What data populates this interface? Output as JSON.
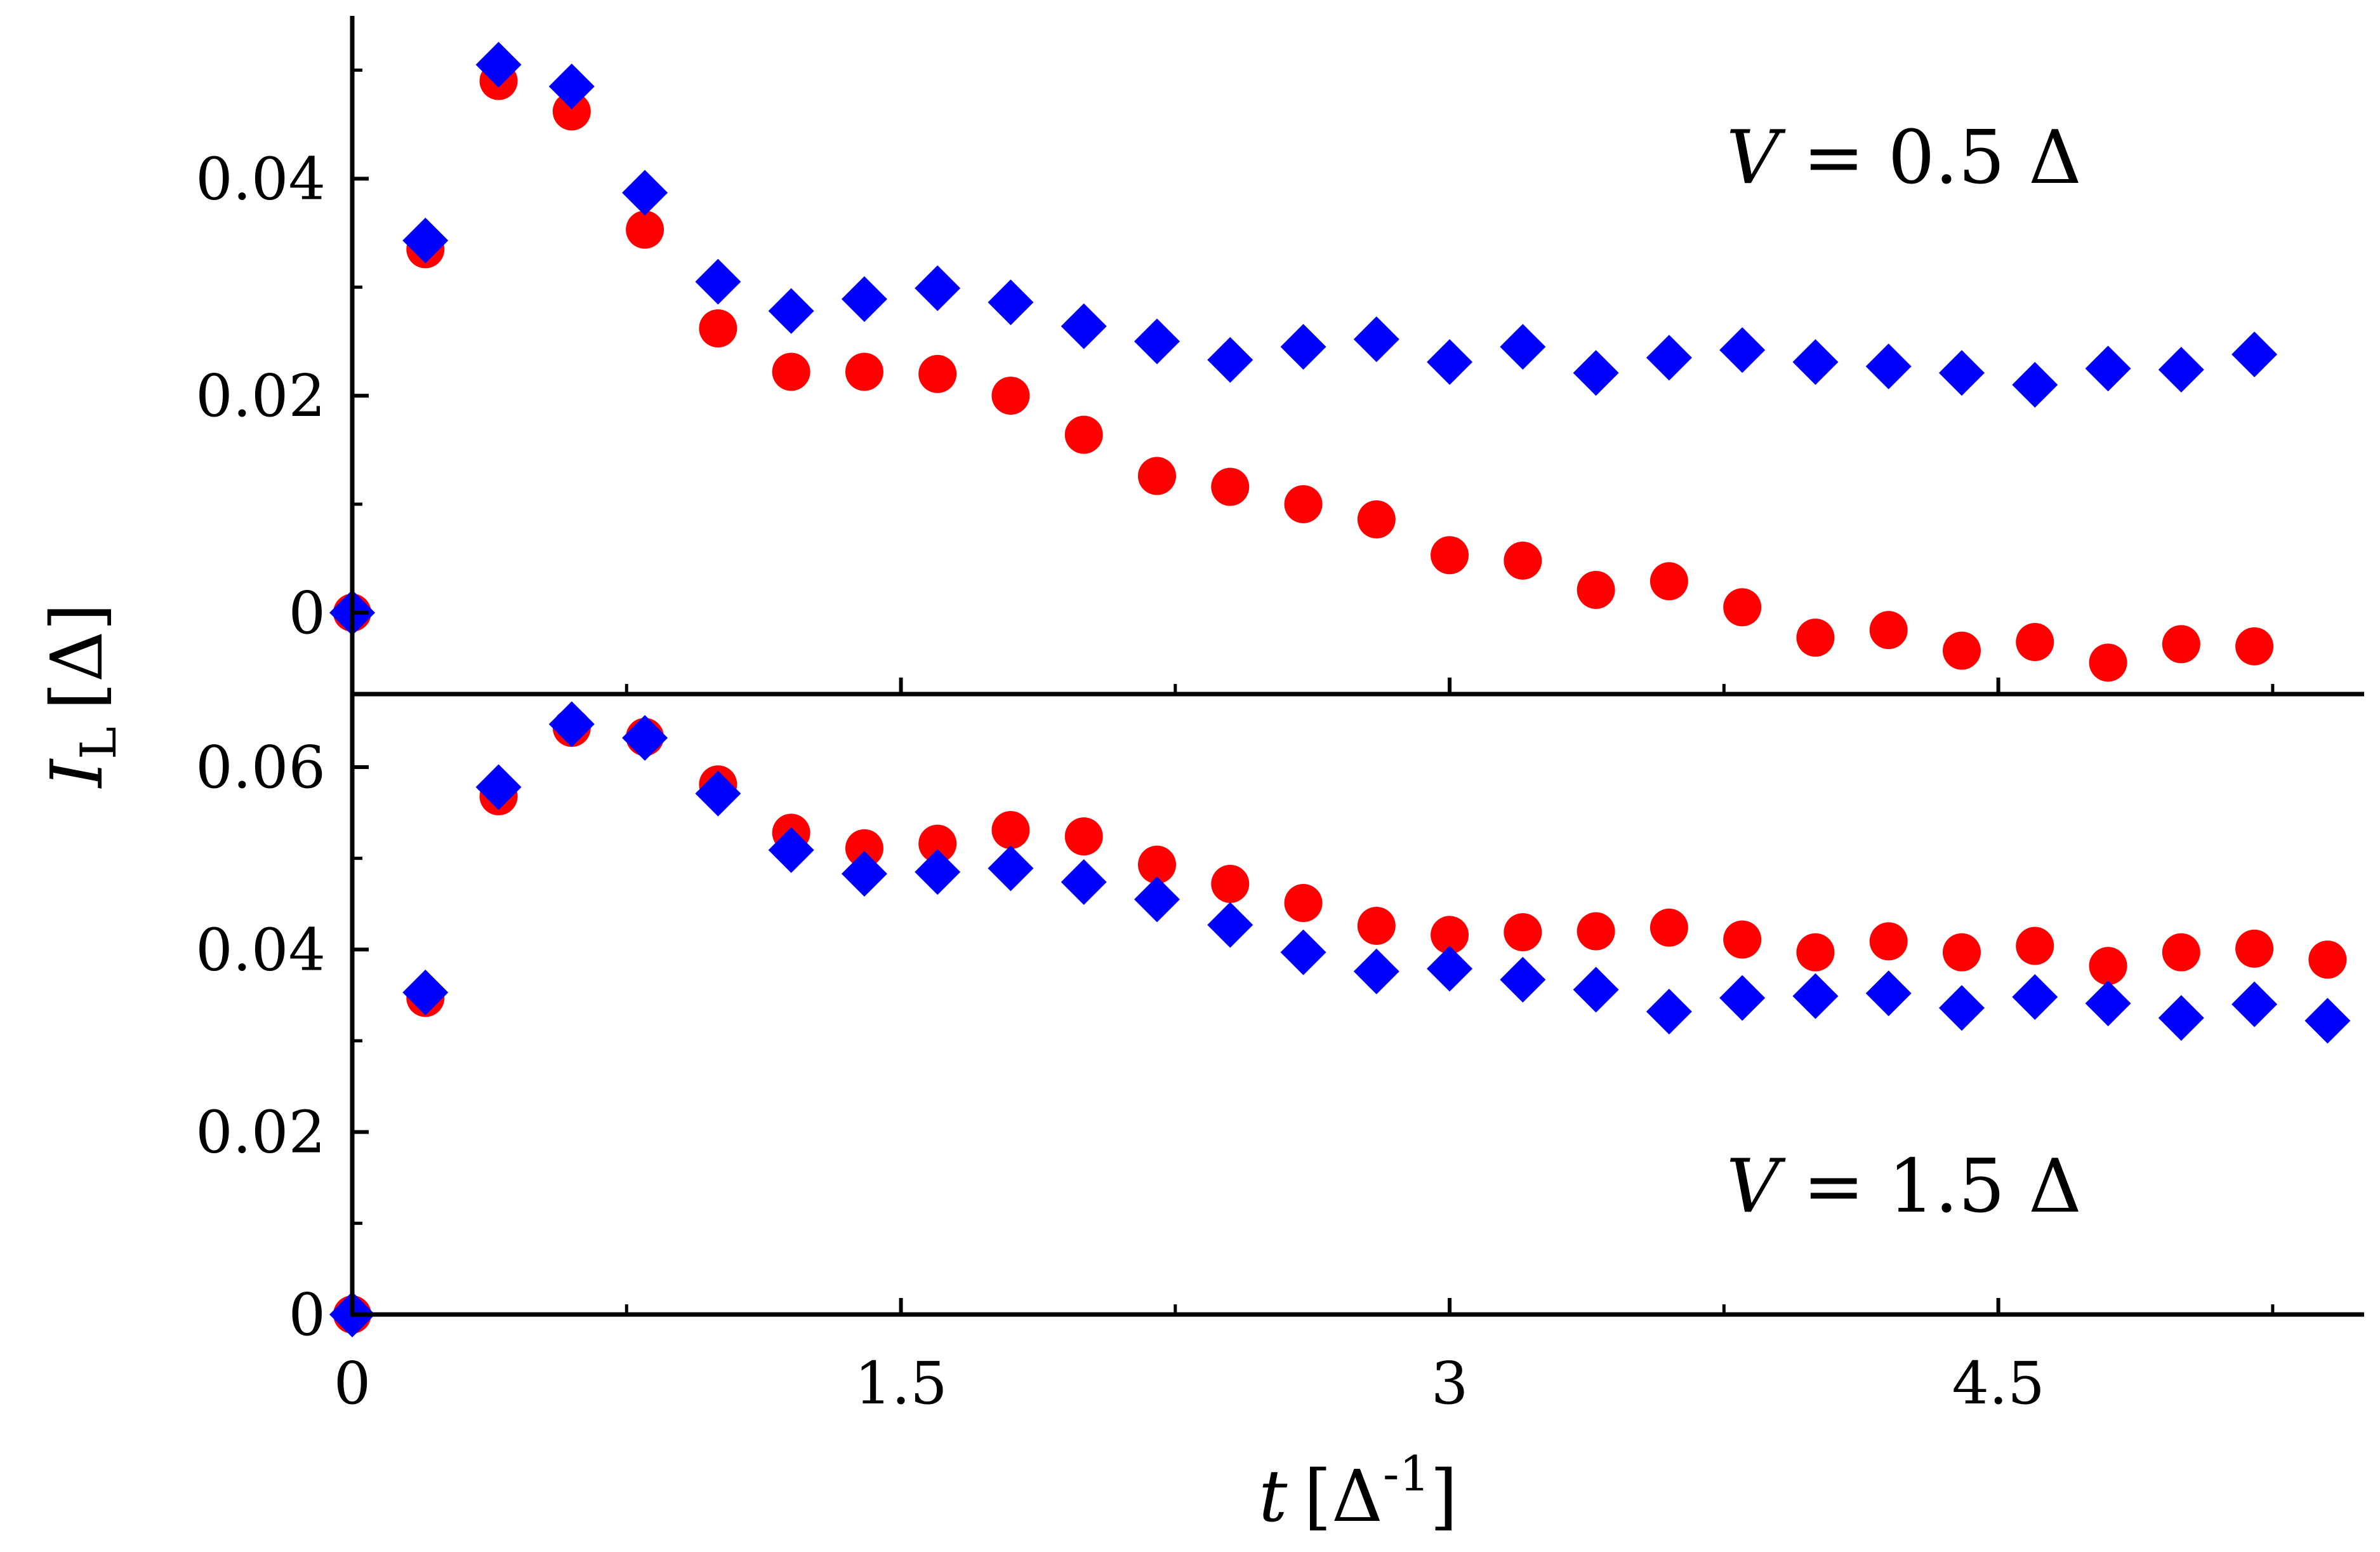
{
  "chart_data": [
    {
      "type": "scatter",
      "panel": "top",
      "annotation": {
        "var": "V",
        "eq": " = 0.5 Δ"
      },
      "xlim": [
        0,
        5.5
      ],
      "ylim": [
        -0.0075,
        0.055
      ],
      "x_ticks": [
        0,
        1.5,
        3,
        4.5
      ],
      "x_tick_labels": [
        "0",
        "1.5",
        "3",
        "4.5"
      ],
      "y_ticks": [
        0,
        0.02,
        0.04
      ],
      "y_tick_labels": [
        "0",
        "0.02",
        "0.04"
      ],
      "grid": false,
      "series": [
        {
          "marker": "circle",
          "color": "#ff0000",
          "x": [
            0,
            0.2,
            0.4,
            0.6,
            0.8,
            1.0,
            1.2,
            1.4,
            1.6,
            1.8,
            2.0,
            2.2,
            2.4,
            2.6,
            2.8,
            3.0,
            3.2,
            3.4,
            3.6,
            3.8,
            4.0,
            4.2,
            4.4,
            4.6,
            4.8,
            5.0,
            5.2
          ],
          "y": [
            0,
            0.0335,
            0.049,
            0.0462,
            0.0353,
            0.0262,
            0.0222,
            0.0222,
            0.022,
            0.02,
            0.0164,
            0.0126,
            0.0116,
            0.01,
            0.0086,
            0.0053,
            0.0048,
            0.0021,
            0.0029,
            0.0005,
            -0.0023,
            -0.0016,
            -0.0035,
            -0.0027,
            -0.0046,
            -0.0029,
            -0.0031
          ]
        },
        {
          "marker": "diamond",
          "color": "#0000ff",
          "x": [
            0,
            0.2,
            0.4,
            0.6,
            0.8,
            1.0,
            1.2,
            1.4,
            1.6,
            1.8,
            2.0,
            2.2,
            2.4,
            2.6,
            2.8,
            3.0,
            3.2,
            3.4,
            3.6,
            3.8,
            4.0,
            4.2,
            4.4,
            4.6,
            4.8,
            5.0,
            5.2
          ],
          "y": [
            0,
            0.0343,
            0.0505,
            0.0485,
            0.0387,
            0.0305,
            0.0278,
            0.0289,
            0.0299,
            0.0286,
            0.0264,
            0.025,
            0.0233,
            0.0245,
            0.0252,
            0.0231,
            0.0245,
            0.0221,
            0.0235,
            0.0242,
            0.0231,
            0.0227,
            0.0221,
            0.021,
            0.0225,
            0.0224,
            0.0238
          ]
        }
      ]
    },
    {
      "type": "scatter",
      "panel": "bottom",
      "annotation": {
        "var": "V",
        "eq": " = 1.5 Δ"
      },
      "xlim": [
        0,
        5.5
      ],
      "ylim": [
        0,
        0.068
      ],
      "x_ticks": [
        0,
        1.5,
        3,
        4.5
      ],
      "x_tick_labels": [
        "0",
        "1.5",
        "3",
        "4.5"
      ],
      "y_ticks": [
        0,
        0.02,
        0.04,
        0.06
      ],
      "y_tick_labels": [
        "0",
        "0.02",
        "0.04",
        "0.06"
      ],
      "grid": false,
      "series": [
        {
          "marker": "circle",
          "color": "#ff0000",
          "x": [
            0,
            0.2,
            0.4,
            0.6,
            0.8,
            1.0,
            1.2,
            1.4,
            1.6,
            1.8,
            2.0,
            2.2,
            2.4,
            2.6,
            2.8,
            3.0,
            3.2,
            3.4,
            3.6,
            3.8,
            4.0,
            4.2,
            4.4,
            4.6,
            4.8,
            5.0,
            5.2,
            5.4
          ],
          "y": [
            0,
            0.0347,
            0.0568,
            0.0643,
            0.0633,
            0.0581,
            0.0528,
            0.0511,
            0.0516,
            0.0531,
            0.0524,
            0.0493,
            0.0472,
            0.0451,
            0.0426,
            0.0416,
            0.0419,
            0.042,
            0.0424,
            0.0411,
            0.0397,
            0.0409,
            0.0397,
            0.0404,
            0.0382,
            0.0397,
            0.0401,
            0.0389
          ]
        },
        {
          "marker": "diamond",
          "color": "#0000ff",
          "x": [
            0,
            0.2,
            0.4,
            0.6,
            0.8,
            1.0,
            1.2,
            1.4,
            1.6,
            1.8,
            2.0,
            2.2,
            2.4,
            2.6,
            2.8,
            3.0,
            3.2,
            3.4,
            3.6,
            3.8,
            4.0,
            4.2,
            4.4,
            4.6,
            4.8,
            5.0,
            5.2,
            5.4
          ],
          "y": [
            0,
            0.0353,
            0.0578,
            0.0647,
            0.0632,
            0.0571,
            0.0509,
            0.0483,
            0.0485,
            0.0489,
            0.0474,
            0.0455,
            0.0427,
            0.0397,
            0.0376,
            0.0379,
            0.0367,
            0.0356,
            0.0332,
            0.0347,
            0.0349,
            0.0352,
            0.0336,
            0.0348,
            0.0341,
            0.0325,
            0.034,
            0.0322
          ]
        }
      ]
    }
  ],
  "axes": {
    "ylabel": {
      "sym": "I",
      "sub": "L",
      "unit": "[Δ]"
    },
    "xlabel": {
      "sym": "t",
      "unit_open": "[Δ",
      "unit_sup": "-1",
      "unit_close": "]"
    }
  }
}
